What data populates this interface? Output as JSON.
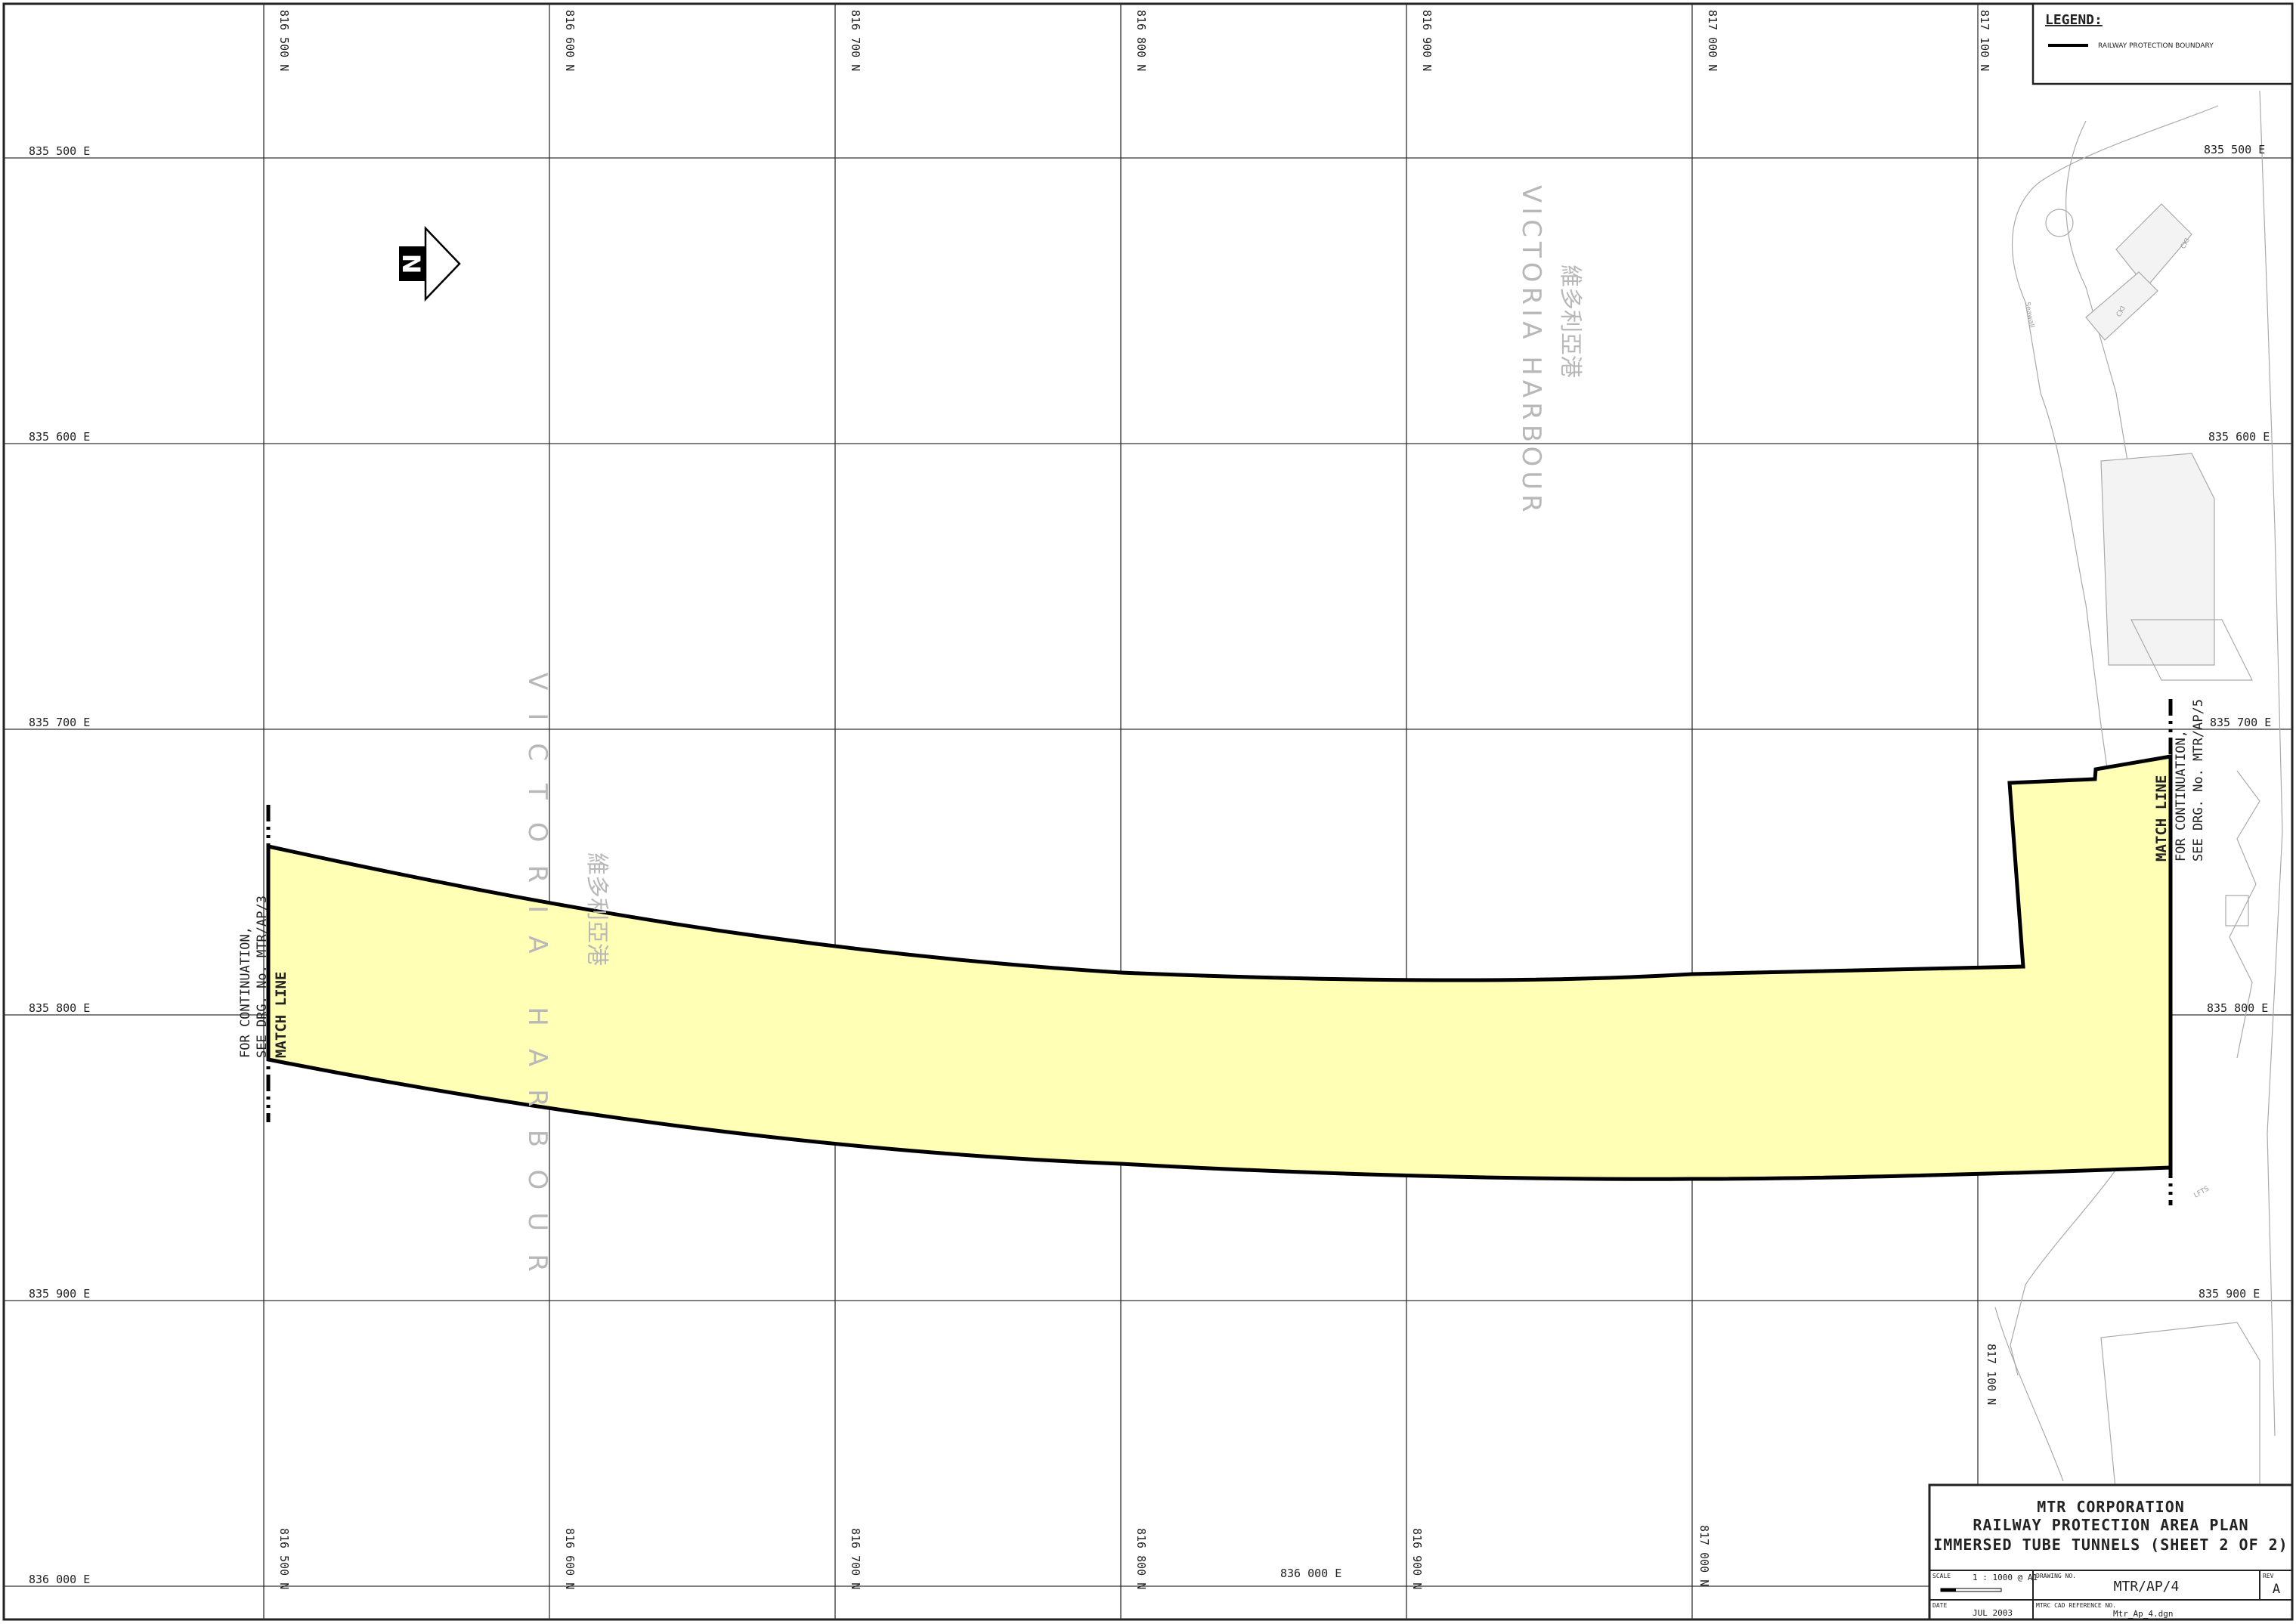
{
  "map": {
    "legend": {
      "title": "LEGEND:",
      "item": "RAILWAY PROTECTION BOUNDARY"
    },
    "northing_labels": [
      "816 500 N",
      "816 600 N",
      "816 700 N",
      "816 800 N",
      "816 900 N",
      "817 000 N",
      "817 100 N"
    ],
    "easting_labels": [
      "835 500 E",
      "835 600 E",
      "835 700 E",
      "835 800 E",
      "835 900 E",
      "836 000 E"
    ],
    "extra_easting_label": "836 000 E",
    "harbour_en": "VICTORIA HARBOUR",
    "harbour_zh": "維多利亞港",
    "match_line_left": {
      "label": "MATCH LINE",
      "cont1": "FOR CONTINUATION,",
      "cont2": "SEE DRG. No. MTR/AP/3"
    },
    "match_line_right": {
      "label": "MATCH LINE",
      "cont1": "FOR CONTINUATION,",
      "cont2": "SEE DRG. No. MTR/AP/5"
    },
    "north_symbol": "N",
    "colors": {
      "protection_area": "#ffffb6",
      "boundary": "#000000",
      "grid": "#333333",
      "harbour_text": "#b8b8b8"
    }
  },
  "title_block": {
    "line1": "MTR CORPORATION",
    "line2": "RAILWAY PROTECTION AREA PLAN",
    "line3": "IMMERSED TUBE TUNNELS (SHEET 2 OF 2)",
    "scale_label": "SCALE",
    "scale_value": "1 : 1000 @ A1",
    "drawing_no_label": "DRAWING NO.",
    "drawing_no": "MTR/AP/4",
    "rev_label": "REV",
    "rev": "A",
    "date_label": "DATE",
    "date": "JUL 2003",
    "cad_label": "MTRC CAD REFERENCE NO.",
    "cad_ref": "Mtr_Ap_4.dgn"
  }
}
